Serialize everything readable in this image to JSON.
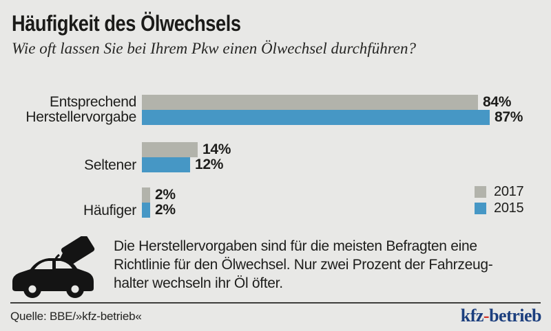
{
  "header": {
    "title": "Häufigkeit des Ölwechsels",
    "subtitle": "Wie oft lassen Sie bei Ihrem Pkw einen Ölwechsel durchführen?"
  },
  "chart_data": {
    "type": "bar",
    "orientation": "horizontal",
    "categories": [
      "Entsprechend Herstellervorgabe",
      "Seltener",
      "Häufiger"
    ],
    "category_label_lines": [
      [
        "Entsprechend",
        "Herstellervorgabe"
      ],
      [
        "Seltener"
      ],
      [
        "Häufiger"
      ]
    ],
    "series": [
      {
        "name": "2017",
        "color": "#b2b3ab",
        "values": [
          84,
          14,
          2
        ]
      },
      {
        "name": "2015",
        "color": "#4697c5",
        "values": [
          87,
          12,
          2
        ]
      }
    ],
    "value_suffix": "%",
    "xlim": [
      0,
      100
    ],
    "grid": false,
    "legend_position": "right"
  },
  "annotation": {
    "icon": "car-oil-change-icon",
    "lines": [
      "Die Herstellervorgaben sind für die meisten Befragten eine",
      "Richtlinie für den Ölwechsel. Nur zwei Prozent der Fahrzeug-",
      "halter wechseln ihr Öl öfter."
    ]
  },
  "footer": {
    "source": "Quelle: BBE/»kfz-betrieb«",
    "logo": {
      "part1": "kfz",
      "hyphen": "-",
      "part2": "betrieb"
    }
  },
  "colors": {
    "background": "#e8e8e6",
    "bar_2017": "#b2b3ab",
    "bar_2015": "#4697c5",
    "text": "#1d1d1b",
    "logo_blue": "#1c3f7e",
    "logo_red": "#d2342a"
  }
}
